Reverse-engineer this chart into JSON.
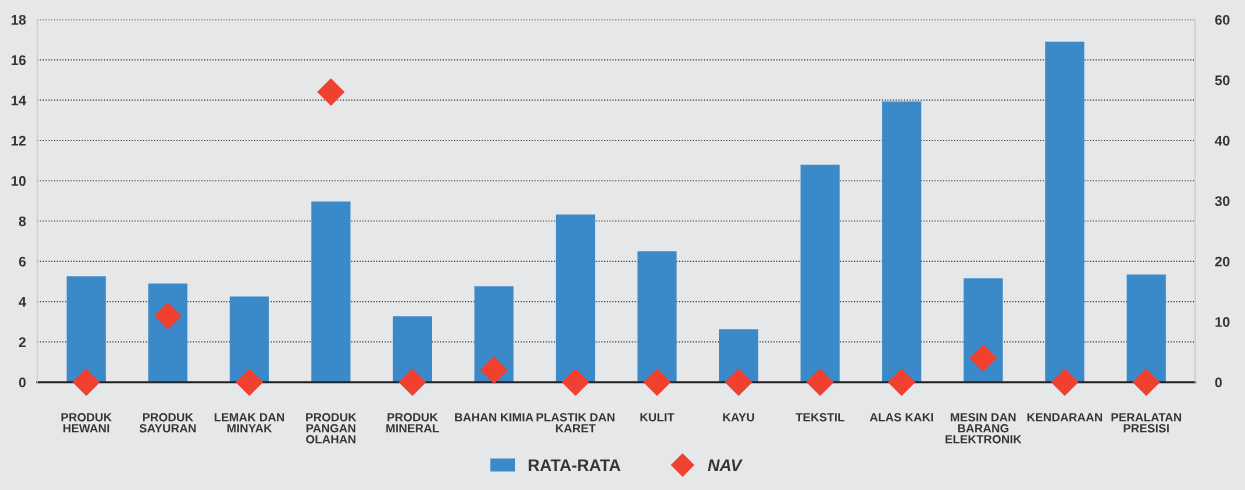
{
  "chart_data": {
    "type": "bar",
    "categories": [
      "PRODUK\nHEWANI",
      "PRODUK\nSAYURAN",
      "LEMAK DAN\nMINYAK",
      "PRODUK\nPANGAN\nOLAHAN",
      "PRODUK\nMINERAL",
      "BAHAN KIMIA",
      "PLASTIK DAN\nKARET",
      "KULIT",
      "KAYU",
      "TEKSTIL",
      "ALAS KAKI",
      "MESIN DAN\nBARANG\nELEKTRONIK",
      "KENDARAAN",
      "PERALATAN\nPRESISI"
    ],
    "series": [
      {
        "name": "RATA-RATA",
        "color": "#3a89c9",
        "values": [
          5.26,
          4.9,
          4.26,
          8.97,
          3.27,
          4.76,
          8.33,
          6.5,
          2.63,
          10.8,
          13.93,
          5.16,
          16.9,
          5.35
        ]
      },
      {
        "name": "NAV",
        "type": "scatter",
        "axis": "y2",
        "marker": "diamond",
        "color": "#f04030",
        "values": [
          0,
          11,
          0,
          48,
          0,
          2,
          0,
          0,
          0,
          0,
          0,
          4,
          0,
          0
        ]
      }
    ],
    "ylim": [
      0,
      18
    ],
    "yticks": [
      0,
      2,
      4,
      6,
      8,
      10,
      12,
      14,
      16,
      18
    ],
    "y2lim": [
      0,
      60
    ],
    "y2ticks": [
      0,
      10,
      20,
      30,
      40,
      50,
      60
    ],
    "grid": "y",
    "legend": "bottom"
  }
}
